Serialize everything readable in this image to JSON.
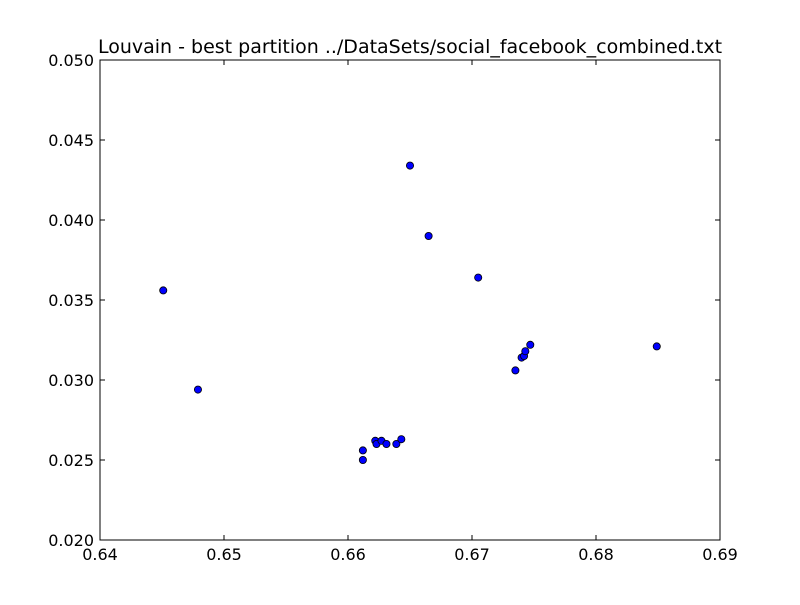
{
  "chart_data": {
    "type": "scatter",
    "title": "Louvain - best partition ../DataSets/social_facebook_combined.txt",
    "xlabel": "",
    "ylabel": "",
    "xlim": [
      0.64,
      0.69
    ],
    "ylim": [
      0.02,
      0.05
    ],
    "x_ticks": [
      "0.64",
      "0.65",
      "0.66",
      "0.67",
      "0.68",
      "0.69"
    ],
    "y_ticks": [
      "0.020",
      "0.025",
      "0.030",
      "0.035",
      "0.040",
      "0.045",
      "0.050"
    ],
    "grid": false,
    "legend": "none",
    "marker_color": "#0000ff",
    "marker_edge_color": "#000000",
    "points": [
      {
        "x": 0.6451,
        "y": 0.0356
      },
      {
        "x": 0.6479,
        "y": 0.0294
      },
      {
        "x": 0.6612,
        "y": 0.0256
      },
      {
        "x": 0.6612,
        "y": 0.025
      },
      {
        "x": 0.6622,
        "y": 0.0262
      },
      {
        "x": 0.6623,
        "y": 0.026
      },
      {
        "x": 0.6627,
        "y": 0.0262
      },
      {
        "x": 0.6631,
        "y": 0.026
      },
      {
        "x": 0.6639,
        "y": 0.026
      },
      {
        "x": 0.6643,
        "y": 0.0263
      },
      {
        "x": 0.665,
        "y": 0.0434
      },
      {
        "x": 0.6665,
        "y": 0.039
      },
      {
        "x": 0.6705,
        "y": 0.0364
      },
      {
        "x": 0.6735,
        "y": 0.0306
      },
      {
        "x": 0.674,
        "y": 0.0314
      },
      {
        "x": 0.6742,
        "y": 0.0315
      },
      {
        "x": 0.6743,
        "y": 0.0318
      },
      {
        "x": 0.6747,
        "y": 0.0322
      },
      {
        "x": 0.6849,
        "y": 0.0321
      }
    ]
  }
}
